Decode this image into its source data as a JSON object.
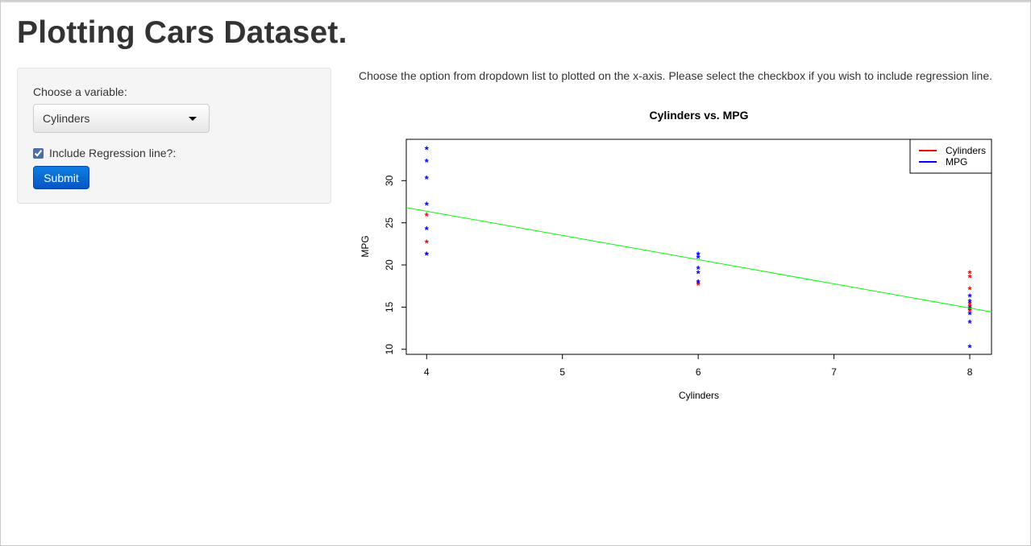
{
  "page": {
    "title": "Plotting Cars Dataset."
  },
  "sidebar": {
    "variable_label": "Choose a variable:",
    "variable_select": {
      "selected": "Cylinders",
      "icon": "caret-down-icon"
    },
    "regression_checkbox": {
      "label": "Include Regression line?:",
      "checked": true
    },
    "submit_label": "Submit"
  },
  "main": {
    "description": "Choose the option from dropdown list to plotted on the x-axis. Please select the checkbox if you wish to include regression line."
  },
  "chart_data": {
    "type": "scatter",
    "title": "Cylinders vs. MPG",
    "xlabel": "Cylinders",
    "ylabel": "MPG",
    "xlim": [
      3.85,
      8.16
    ],
    "ylim": [
      9.4,
      34.9
    ],
    "x_ticks": [
      4,
      5,
      6,
      7,
      8
    ],
    "y_ticks": [
      10,
      15,
      20,
      25,
      30
    ],
    "marker": "*",
    "legend": {
      "position": "top-right",
      "entries": [
        {
          "label": "Cylinders",
          "color": "#ff0000"
        },
        {
          "label": "MPG",
          "color": "#0000ff"
        }
      ]
    },
    "series": [
      {
        "name": "Cylinders",
        "color": "#ff0000",
        "points": [
          [
            4,
            26.0
          ],
          [
            4,
            22.8
          ],
          [
            4,
            21.4
          ],
          [
            6,
            17.8
          ],
          [
            6,
            18.1
          ],
          [
            8,
            19.2
          ],
          [
            8,
            18.7
          ],
          [
            8,
            17.3
          ],
          [
            8,
            15.5
          ],
          [
            8,
            15.2
          ],
          [
            8,
            14.7
          ]
        ]
      },
      {
        "name": "MPG",
        "color": "#0000ff",
        "points": [
          [
            4,
            33.9
          ],
          [
            4,
            32.4
          ],
          [
            4,
            30.4
          ],
          [
            4,
            27.3
          ],
          [
            4,
            24.4
          ],
          [
            4,
            21.4
          ],
          [
            6,
            21.4
          ],
          [
            6,
            21.0
          ],
          [
            6,
            19.7
          ],
          [
            6,
            19.2
          ],
          [
            6,
            18.1
          ],
          [
            8,
            16.4
          ],
          [
            8,
            15.8
          ],
          [
            8,
            15.0
          ],
          [
            8,
            14.3
          ],
          [
            8,
            13.3
          ],
          [
            8,
            10.4
          ]
        ]
      }
    ],
    "regression_line": {
      "color": "#00ff00",
      "intercept": 37.88,
      "slope": -2.876
    }
  }
}
